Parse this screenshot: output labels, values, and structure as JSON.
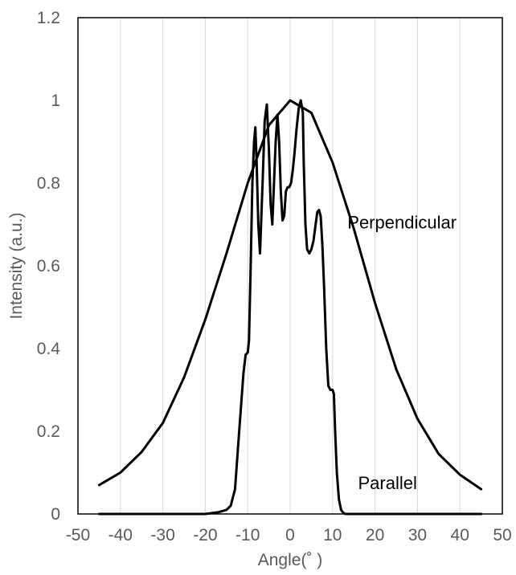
{
  "chart_data": {
    "type": "line",
    "title": "",
    "xlabel": "Angle(˚ )",
    "ylabel": "Intensity (a.u.)",
    "xlim": [
      -50,
      50
    ],
    "ylim": [
      0,
      1.2
    ],
    "x_ticks": [
      -50,
      -40,
      -30,
      -20,
      -10,
      0,
      10,
      20,
      30,
      40,
      50
    ],
    "y_ticks": [
      0,
      0.2,
      0.4,
      0.6,
      0.8,
      1,
      1.2
    ],
    "y_tick_labels": [
      "0",
      "0.2",
      "0.4",
      "0.6",
      "0.8",
      "1",
      "1.2"
    ],
    "grid": "vertical",
    "legend": "none",
    "annotations": [
      {
        "text": "Perpendicular",
        "x": 13.5,
        "y": 0.69
      },
      {
        "text": "Parallel",
        "x": 16,
        "y": 0.06
      }
    ],
    "series": [
      {
        "x": [
          -45,
          -40,
          -35,
          -30,
          -25,
          -20,
          -15,
          -10,
          -5,
          0,
          5,
          10,
          15,
          20,
          25,
          30,
          35,
          40,
          45
        ],
        "y": [
          0.07,
          0.1,
          0.15,
          0.22,
          0.33,
          0.47,
          0.63,
          0.8,
          0.94,
          1.0,
          0.97,
          0.85,
          0.69,
          0.51,
          0.35,
          0.23,
          0.145,
          0.095,
          0.06
        ],
        "color": "#000000"
      },
      {
        "x": [
          -45,
          -20,
          -17,
          -15,
          -14,
          -13,
          -12,
          -11,
          -10.5,
          -10,
          -9.7,
          -9.3,
          -8.9,
          -8.5,
          -8.2,
          -7.9,
          -7.5,
          -7.1,
          -6.5,
          -6,
          -5.5,
          -5,
          -4.6,
          -4.2,
          -3.8,
          -3.4,
          -3.0,
          -2.6,
          -2.2,
          -1.8,
          -1.4,
          -1.0,
          -0.6,
          -0.2,
          0.2,
          0.6,
          1,
          1.5,
          2,
          2.5,
          3,
          3.2,
          3.6,
          4,
          4.5,
          5,
          5.5,
          6,
          6.4,
          6.8,
          7.2,
          7.6,
          8,
          8.5,
          9,
          9.5,
          10,
          10.3,
          10.6,
          11,
          11.5,
          12,
          12.5,
          13,
          15,
          20,
          45
        ],
        "y": [
          0,
          0,
          0.004,
          0.01,
          0.02,
          0.06,
          0.2,
          0.34,
          0.385,
          0.39,
          0.42,
          0.6,
          0.8,
          0.9,
          0.935,
          0.85,
          0.7,
          0.63,
          0.8,
          0.95,
          0.99,
          0.88,
          0.75,
          0.7,
          0.8,
          0.9,
          0.965,
          0.9,
          0.78,
          0.71,
          0.72,
          0.78,
          0.79,
          0.79,
          0.8,
          0.83,
          0.87,
          0.93,
          0.98,
          1.0,
          0.97,
          0.85,
          0.7,
          0.64,
          0.63,
          0.64,
          0.66,
          0.7,
          0.73,
          0.735,
          0.72,
          0.65,
          0.55,
          0.4,
          0.31,
          0.3,
          0.3,
          0.29,
          0.2,
          0.1,
          0.035,
          0.01,
          0.003,
          0,
          0,
          0,
          0
        ],
        "color": "#000000"
      }
    ]
  }
}
